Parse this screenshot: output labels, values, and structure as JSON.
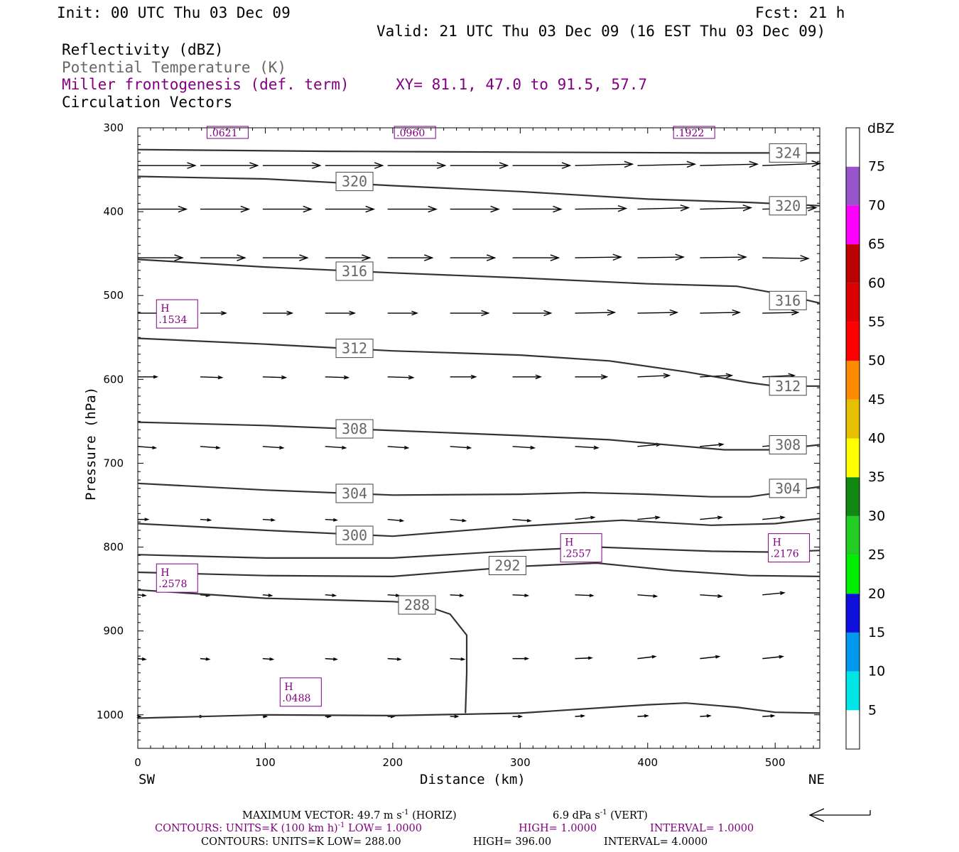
{
  "header": {
    "init": "Init: 00 UTC Thu 03 Dec 09",
    "fcst": "Fcst:   21 h",
    "valid": "Valid: 21 UTC Thu 03 Dec 09 (16 EST Thu 03 Dec 09)",
    "field1": "Reflectivity (dBZ)",
    "field2": "Potential Temperature (K)",
    "field3": "Miller frontogenesis (def. term)",
    "xy": "XY=  81.1, 47.0 to  91.5, 57.7",
    "field4": "Circulation Vectors"
  },
  "colors": {
    "theta": "#333333",
    "fronto": "#800080",
    "vectors": "#000000",
    "frame": "#000000"
  },
  "chart_data": {
    "type": "cross-section",
    "xlabel": "Distance (km)",
    "ylabel": "Pressure (hPa)",
    "x_end_labels": {
      "left": "SW",
      "right": "NE"
    },
    "xlim": [
      0,
      535
    ],
    "ylim": [
      1040,
      300
    ],
    "x_ticks": [
      0,
      100,
      200,
      300,
      400,
      500
    ],
    "y_ticks": [
      300,
      400,
      500,
      600,
      700,
      800,
      900,
      1000
    ],
    "theta_contours": [
      {
        "label": "324",
        "points": [
          [
            0,
            326
          ],
          [
            150,
            328
          ],
          [
            300,
            329
          ],
          [
            450,
            330
          ],
          [
            535,
            330
          ]
        ],
        "label_at": [
          510,
          330
        ]
      },
      {
        "label": "320",
        "points": [
          [
            0,
            358
          ],
          [
            100,
            361
          ],
          [
            200,
            369
          ],
          [
            300,
            376
          ],
          [
            400,
            385
          ],
          [
            480,
            389
          ],
          [
            535,
            393
          ]
        ],
        "label_at": [
          170,
          364
        ],
        "label2": "320",
        "label2_at": [
          510,
          393
        ]
      },
      {
        "label": "316",
        "points": [
          [
            0,
            457
          ],
          [
            100,
            466
          ],
          [
            200,
            473
          ],
          [
            300,
            479
          ],
          [
            400,
            486
          ],
          [
            470,
            489
          ],
          [
            500,
            497
          ],
          [
            535,
            509
          ]
        ],
        "label_at": [
          170,
          471
        ],
        "label2": "316",
        "label2_at": [
          510,
          506
        ]
      },
      {
        "label": "312",
        "points": [
          [
            0,
            551
          ],
          [
            100,
            558
          ],
          [
            200,
            566
          ],
          [
            300,
            571
          ],
          [
            370,
            578
          ],
          [
            430,
            591
          ],
          [
            480,
            604
          ],
          [
            500,
            608
          ],
          [
            535,
            608
          ]
        ],
        "label_at": [
          170,
          563
        ],
        "label2": "312",
        "label2_at": [
          510,
          608
        ]
      },
      {
        "label": "308",
        "points": [
          [
            0,
            651
          ],
          [
            100,
            655
          ],
          [
            200,
            661
          ],
          [
            300,
            667
          ],
          [
            370,
            672
          ],
          [
            430,
            680
          ],
          [
            460,
            684
          ],
          [
            500,
            684
          ],
          [
            535,
            678
          ]
        ],
        "label_at": [
          170,
          659
        ],
        "label2": "308",
        "label2_at": [
          510,
          678
        ]
      },
      {
        "label": "304",
        "points": [
          [
            0,
            724
          ],
          [
            100,
            732
          ],
          [
            200,
            738
          ],
          [
            300,
            737
          ],
          [
            350,
            735
          ],
          [
            400,
            737
          ],
          [
            450,
            740
          ],
          [
            480,
            740
          ],
          [
            535,
            728
          ]
        ],
        "label_at": [
          170,
          736
        ],
        "label2": "304",
        "label2_at": [
          510,
          730
        ]
      },
      {
        "label": "300",
        "points": [
          [
            0,
            772
          ],
          [
            100,
            780
          ],
          [
            200,
            787
          ],
          [
            300,
            775
          ],
          [
            380,
            768
          ],
          [
            450,
            774
          ],
          [
            500,
            772
          ],
          [
            535,
            766
          ]
        ],
        "label_at": [
          170,
          786
        ]
      },
      {
        "label": "",
        "points": [
          [
            0,
            809
          ],
          [
            100,
            813
          ],
          [
            200,
            813
          ],
          [
            300,
            804
          ],
          [
            360,
            800
          ],
          [
            450,
            805
          ],
          [
            500,
            806
          ],
          [
            535,
            804
          ]
        ]
      },
      {
        "label": "292",
        "points": [
          [
            0,
            830
          ],
          [
            100,
            834
          ],
          [
            200,
            835
          ],
          [
            300,
            823
          ],
          [
            360,
            819
          ],
          [
            420,
            828
          ],
          [
            480,
            834
          ],
          [
            535,
            835
          ]
        ],
        "label_at": [
          290,
          822
        ]
      },
      {
        "label": "288",
        "points": [
          [
            0,
            851
          ],
          [
            100,
            861
          ],
          [
            200,
            865
          ],
          [
            220,
            867
          ],
          [
            245,
            880
          ],
          [
            258,
            905
          ],
          [
            258,
            950
          ],
          [
            257,
            998
          ]
        ],
        "label_at": [
          219,
          869
        ]
      },
      {
        "label": "",
        "points": [
          [
            0,
            1004
          ],
          [
            100,
            1000
          ],
          [
            200,
            1001
          ],
          [
            300,
            998
          ],
          [
            400,
            988
          ],
          [
            430,
            986
          ],
          [
            470,
            991
          ],
          [
            500,
            997
          ],
          [
            535,
            998
          ]
        ]
      }
    ],
    "frontogenesis_labels": [
      {
        "label": "H",
        "value": ".1534",
        "at": [
          23,
          516
        ]
      },
      {
        "label": "H",
        "value": ".2578",
        "at": [
          23,
          831
        ]
      },
      {
        "label": "H",
        "value": ".0488",
        "at": [
          120,
          967
        ]
      },
      {
        "label": "H",
        "value": ".2557",
        "at": [
          340,
          795
        ]
      },
      {
        "label": "H",
        "value": ".2176",
        "at": [
          503,
          795
        ]
      },
      {
        "label": "",
        "value": ".0621",
        "at": [
          71,
          302
        ]
      },
      {
        "label": "",
        "value": ".0960",
        "at": [
          218,
          302
        ]
      },
      {
        "label": "",
        "value": ".1922",
        "at": [
          437,
          302
        ]
      }
    ],
    "vectors": {
      "x_positions": [
        0,
        49,
        98,
        147,
        196,
        245,
        294,
        343,
        392,
        441,
        490
      ],
      "rows": [
        {
          "p": 345,
          "dx": [
            45,
            45,
            45,
            45,
            45,
            45,
            45,
            45,
            45,
            45,
            45
          ],
          "dp": [
            0,
            0,
            0,
            0,
            0,
            0,
            0,
            -2,
            -2,
            -2,
            -3
          ]
        },
        {
          "p": 397,
          "dx": [
            38,
            38,
            38,
            38,
            38,
            38,
            38,
            40,
            40,
            40,
            42
          ],
          "dp": [
            0,
            0,
            0,
            0,
            0,
            0,
            0,
            -1,
            -2,
            -2,
            -2
          ]
        },
        {
          "p": 455,
          "dx": [
            35,
            35,
            35,
            35,
            35,
            35,
            36,
            36,
            36,
            36,
            36
          ],
          "dp": [
            0,
            0,
            0,
            0,
            0,
            0,
            0,
            -1,
            -1,
            -1,
            1
          ]
        },
        {
          "p": 521,
          "dx": [
            20,
            20,
            23,
            23,
            23,
            30,
            30,
            31,
            31,
            31,
            28
          ],
          "dp": [
            0,
            0,
            0,
            0,
            0,
            0,
            0,
            -1,
            -1,
            -1,
            -1
          ]
        },
        {
          "p": 597,
          "dx": [
            15,
            17,
            18,
            18,
            20,
            20,
            22,
            25,
            25,
            25,
            25
          ],
          "dp": [
            0,
            1,
            1,
            1,
            1,
            0,
            0,
            0,
            -2,
            -2,
            -2
          ]
        },
        {
          "p": 680,
          "dx": [
            14,
            15,
            16,
            16,
            16,
            16,
            17,
            18,
            18,
            18,
            18
          ],
          "dp": [
            2,
            2,
            2,
            2,
            2,
            2,
            2,
            2,
            -3,
            -3,
            -3
          ]
        },
        {
          "p": 767,
          "dx": [
            8,
            8,
            9,
            9,
            12,
            12,
            14,
            15,
            17,
            17,
            17
          ],
          "dp": [
            0,
            1,
            1,
            1,
            2,
            2,
            2,
            -3,
            -3,
            -3,
            -3
          ]
        },
        {
          "p": 857,
          "dx": [
            6,
            7,
            7,
            8,
            9,
            10,
            12,
            14,
            15,
            17,
            17
          ],
          "dp": [
            1,
            1,
            1,
            1,
            1,
            1,
            1,
            1,
            2,
            2,
            -3
          ]
        },
        {
          "p": 933,
          "dx": [
            6,
            7,
            8,
            9,
            10,
            11,
            12,
            13,
            14,
            15,
            16
          ],
          "dp": [
            1,
            1,
            1,
            1,
            1,
            1,
            0,
            -1,
            -3,
            -3,
            -3
          ]
        },
        {
          "p": 1002,
          "dx": [
            2,
            2,
            3,
            4,
            5,
            6,
            7,
            7,
            8,
            8,
            9
          ],
          "dp": [
            0,
            0,
            0,
            0,
            0,
            0,
            0,
            -1,
            -1,
            -1,
            -1
          ]
        }
      ]
    },
    "colorbar": {
      "title": "dBZ",
      "levels": [
        5,
        10,
        15,
        20,
        25,
        30,
        35,
        40,
        45,
        50,
        55,
        60,
        65,
        70,
        75
      ],
      "colors": [
        "#ffffff",
        "#00e5e5",
        "#0099ee",
        "#1010dd",
        "#00ee00",
        "#22cc22",
        "#118811",
        "#ffff00",
        "#e5c000",
        "#ff8c00",
        "#ff0000",
        "#dd0000",
        "#bb0000",
        "#ff00ff",
        "#9955cc",
        "#ffffff"
      ]
    }
  },
  "footer": {
    "line1a": "MAXIMUM VECTOR:  49.7 m s",
    "line1b": "-1",
    "line1c": " (HORIZ)",
    "line1d": "6.9 dPa s",
    "line1e": "-1",
    "line1f": " (VERT)",
    "line2a": "CONTOURS:  UNITS=K (100 km h)",
    "line2b": "-1",
    "line2c": "  LOW=   1.0000",
    "line2d": "HIGH=   1.0000",
    "line2e": "INTERVAL=    1.0000",
    "line3a": "CONTOURS:  UNITS=K  LOW=   288.00",
    "line3b": "HIGH=   396.00",
    "line3c": "INTERVAL=    4.0000"
  }
}
